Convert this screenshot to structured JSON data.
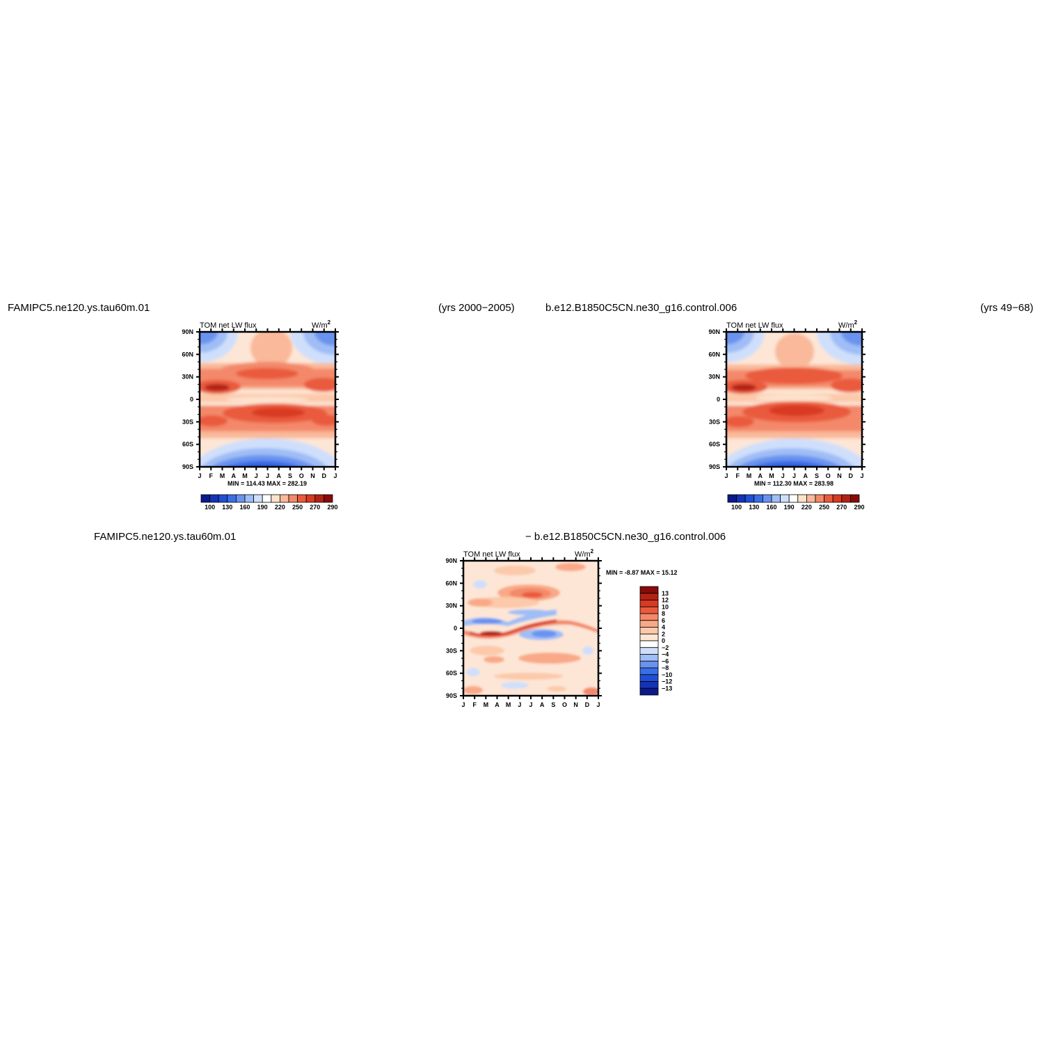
{
  "page": {
    "case1": "FAMIPC5.ne120.ys.tau60m.01",
    "case1_years": "(yrs 2000−2005)",
    "case2": "b.e12.B1850C5CN.ne30_g16.control.006",
    "case2_years": "(yrs 49−68)",
    "diff_left": "FAMIPC5.ne120.ys.tau60m.01",
    "diff_right": "− b.e12.B1850C5CN.ne30_g16.control.006"
  },
  "chart_data": [
    {
      "type": "heatmap",
      "title": "TOM net LW flux",
      "units": "W/m",
      "units_sup": "2",
      "months": [
        "J",
        "F",
        "M",
        "A",
        "M",
        "J",
        "J",
        "A",
        "S",
        "O",
        "N",
        "D",
        "J"
      ],
      "lat_labels": [
        "90N",
        "60N",
        "30N",
        "0",
        "30S",
        "60S",
        "90S"
      ],
      "ylim": [
        -90,
        90
      ],
      "stats": "MIN = 114.43 MAX = 282.19",
      "colorbar_labels": [
        "100",
        "130",
        "160",
        "190",
        "220",
        "250",
        "270",
        "290"
      ],
      "colorbar_colors": [
        "#0a1a8c",
        "#1533b5",
        "#1f4fd6",
        "#3a6ee6",
        "#6a93ef",
        "#9fbdf6",
        "#cfdffb",
        "#ffffff",
        "#fde2cc",
        "#f9b99a",
        "#f3896a",
        "#ea5a3c",
        "#d83a22",
        "#b22214",
        "#870b0b"
      ]
    },
    {
      "type": "heatmap",
      "title": "TOM net LW flux",
      "units": "W/m",
      "units_sup": "2",
      "months": [
        "J",
        "F",
        "M",
        "A",
        "M",
        "J",
        "J",
        "A",
        "S",
        "O",
        "N",
        "D",
        "J"
      ],
      "lat_labels": [
        "90N",
        "60N",
        "30N",
        "0",
        "30S",
        "60S",
        "90S"
      ],
      "ylim": [
        -90,
        90
      ],
      "stats": "MIN = 112.30 MAX = 283.98",
      "colorbar_labels": [
        "100",
        "130",
        "160",
        "190",
        "220",
        "250",
        "270",
        "290"
      ],
      "colorbar_colors": [
        "#0a1a8c",
        "#1533b5",
        "#1f4fd6",
        "#3a6ee6",
        "#6a93ef",
        "#9fbdf6",
        "#cfdffb",
        "#ffffff",
        "#fde2cc",
        "#f9b99a",
        "#f3896a",
        "#ea5a3c",
        "#d83a22",
        "#b22214",
        "#870b0b"
      ]
    },
    {
      "type": "heatmap",
      "title": "TOM net LW flux",
      "units": "W/m",
      "units_sup": "2",
      "months": [
        "J",
        "F",
        "M",
        "A",
        "M",
        "J",
        "J",
        "A",
        "S",
        "O",
        "N",
        "D",
        "J"
      ],
      "lat_labels": [
        "90N",
        "60N",
        "30N",
        "0",
        "30S",
        "60S",
        "90S"
      ],
      "ylim": [
        -90,
        90
      ],
      "stats": "MIN =   -8.87 MAX =   15.12",
      "colorbar_labels": [
        "13",
        "12",
        "10",
        "8",
        "6",
        "4",
        "2",
        "0",
        "−2",
        "−4",
        "−6",
        "−8",
        "−10",
        "−12",
        "−13"
      ],
      "colorbar_colors": [
        "#870b0b",
        "#b22214",
        "#d83a22",
        "#ea5a3c",
        "#f3896a",
        "#f9a987",
        "#fcc9aa",
        "#fde6d6",
        "#ffffff",
        "#cfdffb",
        "#9fbdf6",
        "#6a93ef",
        "#3a6ee6",
        "#1f4fd6",
        "#1533b5",
        "#0a1a8c"
      ]
    }
  ]
}
